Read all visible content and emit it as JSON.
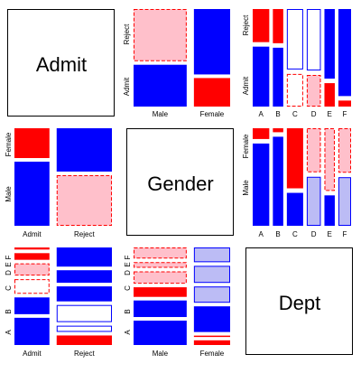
{
  "chart_data": {
    "type": "mosaic-pairs",
    "variables": [
      "Admit",
      "Gender",
      "Dept"
    ],
    "levels": {
      "Admit": [
        "Admit",
        "Reject"
      ],
      "Gender": [
        "Male",
        "Female"
      ],
      "Dept": [
        "A",
        "B",
        "C",
        "D",
        "E",
        "F"
      ]
    },
    "colors": {
      "pos_strong": "#0000ff",
      "pos_weak": "#bcbcf5",
      "neg_strong": "#ff0000",
      "neg_weak": "#ffc0cb",
      "neutral": "#ffffff"
    },
    "admit_by_gender": {
      "x_labels": [
        "Male",
        "Female"
      ],
      "y_labels": [
        "Admit",
        "Reject"
      ],
      "counts": {
        "Male": {
          "Admit": 1198,
          "Reject": 1493
        },
        "Female": {
          "Admit": 557,
          "Reject": 1278
        }
      }
    },
    "admit_by_dept": {
      "x_labels": [
        "A",
        "B",
        "C",
        "D",
        "E",
        "F"
      ],
      "y_labels": [
        "Admit",
        "Reject"
      ],
      "counts": {
        "A": {
          "Admit": 601,
          "Reject": 332
        },
        "B": {
          "Admit": 370,
          "Reject": 215
        },
        "C": {
          "Admit": 322,
          "Reject": 596
        },
        "D": {
          "Admit": 269,
          "Reject": 523
        },
        "E": {
          "Admit": 147,
          "Reject": 437
        },
        "F": {
          "Admit": 46,
          "Reject": 668
        }
      }
    },
    "gender_by_dept": {
      "x_labels": [
        "A",
        "B",
        "C",
        "D",
        "E",
        "F"
      ],
      "y_labels": [
        "Male",
        "Female"
      ],
      "counts": {
        "A": {
          "Male": 825,
          "Female": 108
        },
        "B": {
          "Male": 560,
          "Female": 25
        },
        "C": {
          "Male": 325,
          "Female": 593
        },
        "D": {
          "Male": 417,
          "Female": 375
        },
        "E": {
          "Male": 191,
          "Female": 393
        },
        "F": {
          "Male": 373,
          "Female": 341
        }
      }
    }
  }
}
